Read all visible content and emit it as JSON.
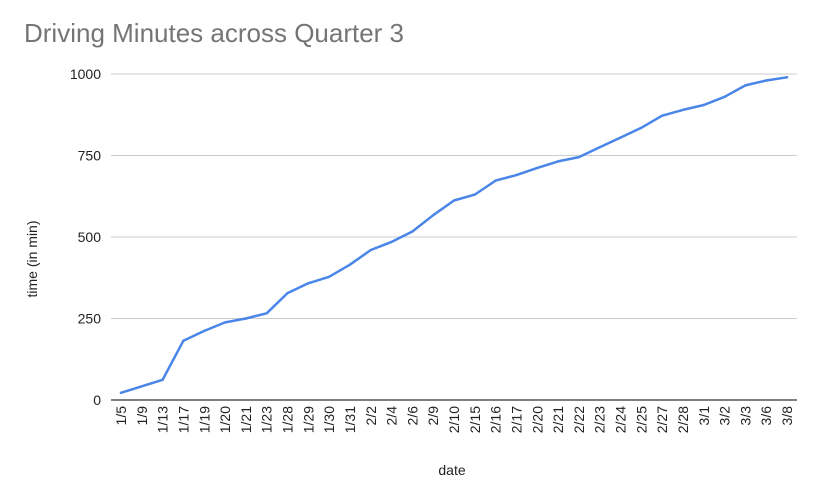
{
  "chart_data": {
    "type": "line",
    "title": "Driving Minutes across Quarter 3",
    "xlabel": "date",
    "ylabel": "time (in min)",
    "ylim": [
      0,
      1000
    ],
    "yticks": [
      "0",
      "250",
      "500",
      "750",
      "1000"
    ],
    "grid": true,
    "legend": "none",
    "colors": {
      "line": "#4a86e8",
      "grid": "#cccccc",
      "axis": "#333333",
      "title": "#757575"
    },
    "categories": [
      "1/5",
      "1/9",
      "1/13",
      "1/17",
      "1/19",
      "1/20",
      "1/21",
      "1/23",
      "1/28",
      "1/29",
      "1/30",
      "1/31",
      "2/2",
      "2/4",
      "2/6",
      "2/9",
      "2/10",
      "2/15",
      "2/16",
      "2/17",
      "2/20",
      "2/21",
      "2/22",
      "2/23",
      "2/24",
      "2/25",
      "2/27",
      "2/28",
      "3/1",
      "3/2",
      "3/3",
      "3/6",
      "3/8"
    ],
    "series": [
      {
        "values": [
          22,
          42,
          62,
          182,
          212,
          238,
          250,
          266,
          328,
          358,
          378,
          415,
          460,
          485,
          517,
          567,
          612,
          630,
          673,
          690,
          712,
          732,
          745,
          775,
          805,
          835,
          872,
          890,
          905,
          930,
          965,
          980,
          990
        ]
      }
    ]
  }
}
